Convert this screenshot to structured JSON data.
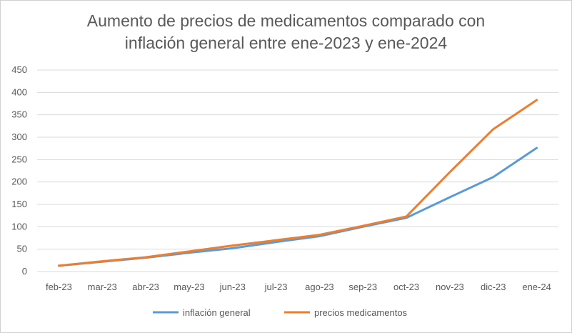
{
  "chart_data": {
    "type": "line",
    "title_line1": "Aumento de precios de medicamentos comparado con",
    "title_line2": "inflación general entre ene-2023 y ene-2024",
    "categories": [
      "feb-23",
      "mar-23",
      "abr-23",
      "may-23",
      "jun-23",
      "jul-23",
      "ago-23",
      "sep-23",
      "oct-23",
      "nov-23",
      "dic-23",
      "ene-24"
    ],
    "series": [
      {
        "name": "inflación general",
        "color": "#5B9BD5",
        "values": [
          13,
          22,
          31,
          42,
          52,
          66,
          79,
          100,
          120,
          166,
          211,
          276
        ]
      },
      {
        "name": "precios medicamentos",
        "color": "#ED7D31",
        "values": [
          13,
          23,
          32,
          45,
          58,
          70,
          82,
          102,
          123,
          222,
          318,
          383
        ]
      }
    ],
    "ylim": [
      0,
      450
    ],
    "yticks": [
      0,
      50,
      100,
      150,
      200,
      250,
      300,
      350,
      400,
      450
    ],
    "grid": true,
    "legend": "bottom"
  }
}
